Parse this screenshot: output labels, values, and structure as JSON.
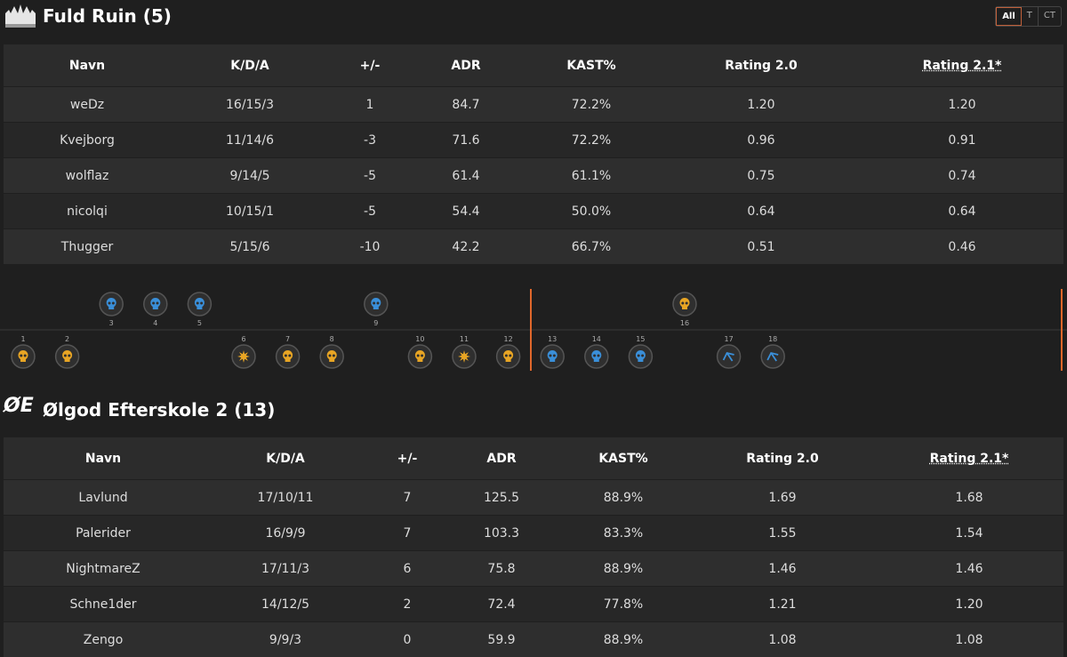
{
  "filters": [
    "All",
    "T",
    "CT"
  ],
  "teams": [
    {
      "title": "Fuld Ruin (5)",
      "table": {
        "columns": [
          "Navn",
          "K/D/A",
          "+/-",
          "ADR",
          "KAST%",
          "Rating 2.0",
          "Rating 2.1*"
        ],
        "rows": [
          [
            "weDz",
            "16/15/3",
            "1",
            "84.7",
            "72.2%",
            "1.20",
            "1.20"
          ],
          [
            "Kvejborg",
            "11/14/6",
            "-3",
            "71.6",
            "72.2%",
            "0.96",
            "0.91"
          ],
          [
            "wolflaz",
            "9/14/5",
            "-5",
            "61.4",
            "61.1%",
            "0.75",
            "0.74"
          ],
          [
            "nicolqi",
            "10/15/1",
            "-5",
            "54.4",
            "50.0%",
            "0.64",
            "0.64"
          ],
          [
            "Thugger",
            "5/15/6",
            "-10",
            "42.2",
            "66.7%",
            "0.51",
            "0.46"
          ]
        ]
      }
    },
    {
      "title": "Ølgod Efterskole 2 (13)",
      "logo": "ØE",
      "table": {
        "columns": [
          "Navn",
          "K/D/A",
          "+/-",
          "ADR",
          "KAST%",
          "Rating 2.0",
          "Rating 2.1*"
        ],
        "rows": [
          [
            "Lavlund",
            "17/10/11",
            "7",
            "125.5",
            "88.9%",
            "1.69",
            "1.68"
          ],
          [
            "Palerider",
            "16/9/9",
            "7",
            "103.3",
            "83.3%",
            "1.55",
            "1.54"
          ],
          [
            "NightmareZ",
            "17/11/3",
            "6",
            "75.8",
            "88.9%",
            "1.46",
            "1.46"
          ],
          [
            "Schne1der",
            "14/12/5",
            "2",
            "72.4",
            "77.8%",
            "1.21",
            "1.20"
          ],
          [
            "Zengo",
            "9/9/3",
            "0",
            "59.9",
            "88.9%",
            "1.08",
            "1.08"
          ]
        ]
      }
    }
  ],
  "rounds": [
    {
      "number": 1,
      "winner": 1,
      "icon": "skull",
      "color": "#e8a524"
    },
    {
      "number": 2,
      "winner": 1,
      "icon": "skull",
      "color": "#e8a524"
    },
    {
      "number": 3,
      "winner": 0,
      "icon": "skull",
      "color": "#3a8fd9"
    },
    {
      "number": 4,
      "winner": 0,
      "icon": "skull",
      "color": "#3a8fd9"
    },
    {
      "number": 5,
      "winner": 0,
      "icon": "skull",
      "color": "#3a8fd9"
    },
    {
      "number": 6,
      "winner": 1,
      "icon": "bomb",
      "color": "#e8a524"
    },
    {
      "number": 7,
      "winner": 1,
      "icon": "skull",
      "color": "#e8a524"
    },
    {
      "number": 8,
      "winner": 1,
      "icon": "skull",
      "color": "#e8a524"
    },
    {
      "number": 9,
      "winner": 0,
      "icon": "skull",
      "color": "#3a8fd9"
    },
    {
      "number": 10,
      "winner": 1,
      "icon": "skull",
      "color": "#e8a524"
    },
    {
      "number": 11,
      "winner": 1,
      "icon": "bomb",
      "color": "#e8a524"
    },
    {
      "number": 12,
      "winner": 1,
      "icon": "skull",
      "color": "#e8a524"
    },
    {
      "number": 13,
      "winner": 1,
      "icon": "skull",
      "color": "#3a8fd9"
    },
    {
      "number": 14,
      "winner": 1,
      "icon": "skull",
      "color": "#3a8fd9"
    },
    {
      "number": 15,
      "winner": 1,
      "icon": "skull",
      "color": "#3a8fd9"
    },
    {
      "number": 16,
      "winner": 0,
      "icon": "skull",
      "color": "#e8a524"
    },
    {
      "number": 17,
      "winner": 1,
      "icon": "defuse",
      "color": "#3a8fd9"
    },
    {
      "number": 18,
      "winner": 1,
      "icon": "defuse",
      "color": "#3a8fd9"
    }
  ]
}
